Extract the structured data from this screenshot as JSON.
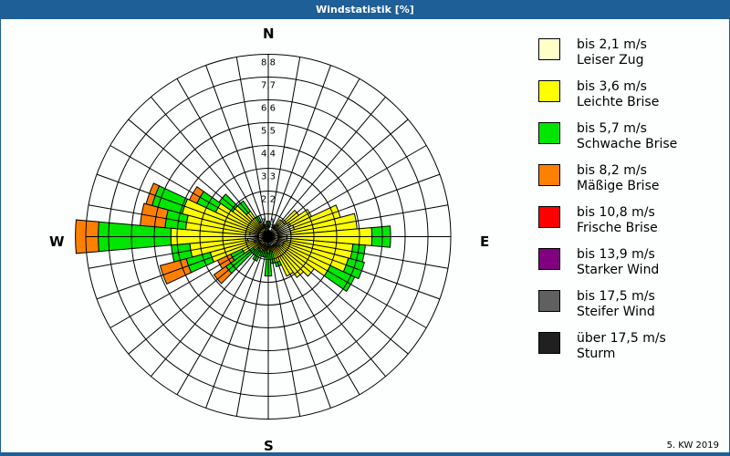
{
  "title": "Windstatistik [%]",
  "footer": "5. KW 2019",
  "cardinals": {
    "n": "N",
    "e": "E",
    "s": "S",
    "w": "W"
  },
  "legend": [
    {
      "range": "bis 2,1 m/s",
      "name": "Leiser Zug",
      "color": "#ffffc8"
    },
    {
      "range": "bis 3,6 m/s",
      "name": "Leichte Brise",
      "color": "#ffff00"
    },
    {
      "range": "bis 5,7 m/s",
      "name": "Schwache Brise",
      "color": "#00e600"
    },
    {
      "range": "bis 8,2 m/s",
      "name": "Mäßige Brise",
      "color": "#ff8000"
    },
    {
      "range": "bis 10,8 m/s",
      "name": "Frische Brise",
      "color": "#ff0000"
    },
    {
      "range": "bis 13,9 m/s",
      "name": "Starker Wind",
      "color": "#800080"
    },
    {
      "range": "bis 17,5 m/s",
      "name": "Steifer Wind",
      "color": "#606060"
    },
    {
      "range": "über 17,5 m/s",
      "name": "Sturm",
      "color": "#202020"
    }
  ],
  "chart_data": {
    "type": "polar-stacked-bar (wind rose)",
    "title": "Windstatistik [%]",
    "radial_ticks": [
      1.1,
      2.2,
      3.3,
      4.4,
      5.5,
      6.6,
      7.7,
      8.8
    ],
    "rmax": 8.8,
    "sector_width_deg": 10,
    "directions_deg": [
      0,
      10,
      20,
      30,
      40,
      50,
      60,
      70,
      80,
      90,
      100,
      110,
      120,
      130,
      140,
      150,
      160,
      170,
      180,
      190,
      200,
      210,
      220,
      230,
      240,
      250,
      260,
      270,
      280,
      290,
      300,
      310,
      320,
      330,
      340,
      350
    ],
    "series": [
      {
        "name": "bis 2,1 m/s",
        "values": [
          0.25,
          0.2,
          0.3,
          0.5,
          0.7,
          1.0,
          1.2,
          1.3,
          1.1,
          0.9,
          0.9,
          0.8,
          0.8,
          0.7,
          0.6,
          0.5,
          0.5,
          0.4,
          0.4,
          0.4,
          0.4,
          0.4,
          0.3,
          0.3,
          0.4,
          0.7,
          1.0,
          1.1,
          0.9,
          0.5,
          0.4,
          0.3,
          0.3,
          0.3,
          0.2,
          0.2
        ]
      },
      {
        "name": "bis 3,6 m/s",
        "values": [
          0.2,
          0.1,
          0.0,
          0.1,
          0.3,
          0.8,
          1.1,
          2.3,
          3.2,
          4.1,
          3.2,
          3.2,
          2.5,
          2.0,
          1.8,
          1.6,
          0.8,
          0.3,
          0.4,
          0.2,
          0.3,
          0.4,
          0.4,
          0.6,
          1.0,
          2.2,
          2.8,
          3.6,
          3.1,
          3.8,
          2.4,
          1.8,
          1.2,
          0.5,
          0.2,
          0.1
        ]
      },
      {
        "name": "bis 5,7 m/s",
        "values": [
          0.3,
          0.0,
          0.0,
          0.0,
          0.0,
          0.0,
          0.0,
          0.0,
          0.0,
          0.9,
          0.6,
          0.8,
          1.3,
          0.0,
          0.0,
          0.0,
          0.2,
          0.6,
          1.1,
          0.4,
          0.3,
          0.5,
          0.4,
          1.6,
          0.6,
          1.2,
          0.9,
          3.5,
          1.0,
          1.5,
          1.0,
          0.8,
          0.6,
          0.3,
          0.2,
          0.1
        ]
      },
      {
        "name": "bis 8,2 m/s",
        "values": [
          0,
          0,
          0,
          0,
          0,
          0,
          0,
          0,
          0,
          0,
          0,
          0,
          0,
          0,
          0,
          0,
          0,
          0,
          0,
          0,
          0,
          0,
          0,
          0.7,
          0.7,
          1.3,
          0,
          1.1,
          1.2,
          0.3,
          0.4,
          0,
          0,
          0,
          0,
          0
        ]
      },
      {
        "name": "bis 10,8 m/s",
        "values": [
          0,
          0,
          0,
          0,
          0,
          0,
          0,
          0,
          0,
          0,
          0,
          0,
          0,
          0,
          0,
          0,
          0,
          0,
          0,
          0,
          0,
          0,
          0,
          0,
          0,
          0,
          0,
          0,
          0,
          0,
          0,
          0,
          0,
          0,
          0,
          0
        ]
      },
      {
        "name": "bis 13,9 m/s",
        "values": [
          0,
          0,
          0,
          0,
          0,
          0,
          0,
          0,
          0,
          0,
          0,
          0,
          0,
          0,
          0,
          0,
          0,
          0,
          0,
          0,
          0,
          0,
          0,
          0,
          0,
          0,
          0,
          0,
          0,
          0,
          0,
          0,
          0,
          0,
          0,
          0
        ]
      },
      {
        "name": "bis 17,5 m/s",
        "values": [
          0,
          0,
          0,
          0,
          0,
          0,
          0,
          0,
          0,
          0,
          0,
          0,
          0,
          0,
          0,
          0,
          0,
          0,
          0,
          0,
          0,
          0,
          0,
          0,
          0,
          0,
          0,
          0,
          0,
          0,
          0,
          0,
          0,
          0,
          0,
          0
        ]
      },
      {
        "name": "über 17,5 m/s",
        "values": [
          0,
          0,
          0,
          0,
          0,
          0,
          0,
          0,
          0,
          0,
          0,
          0,
          0,
          0,
          0,
          0,
          0,
          0,
          0,
          0,
          0,
          0,
          0,
          0,
          0,
          0,
          0,
          0,
          0,
          0,
          0,
          0,
          0,
          0,
          0,
          0
        ]
      }
    ],
    "legend_position": "right",
    "grid": true
  }
}
